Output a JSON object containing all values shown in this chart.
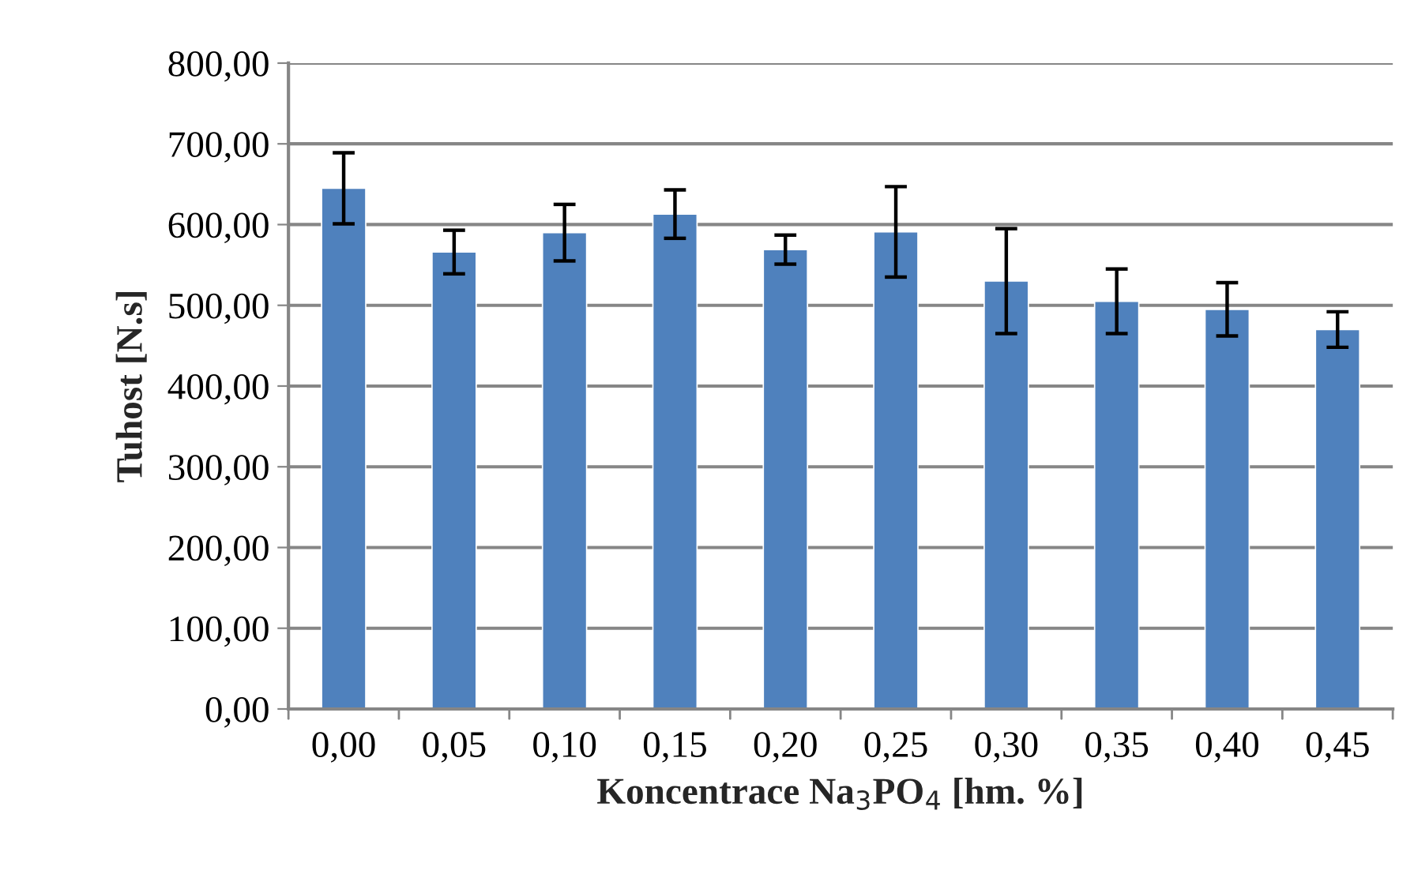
{
  "chart_data": {
    "type": "bar",
    "xlabel": "Koncentrace Na$_{3}$PO$_{4}$ [hm. %]",
    "ylabel": "Tuhost [N.s]",
    "categories": [
      "0,00",
      "0,05",
      "0,10",
      "0,15",
      "0,20",
      "0,25",
      "0,30",
      "0,35",
      "0,40",
      "0,45"
    ],
    "values": [
      645,
      566,
      590,
      613,
      569,
      591,
      530,
      505,
      495,
      470
    ],
    "errors": [
      44,
      27,
      35,
      30,
      18,
      56,
      65,
      40,
      33,
      22
    ],
    "color": "#4f81bd",
    "ylim": [
      0,
      800
    ],
    "yticks": [
      {
        "value": 0,
        "label": "0,00"
      },
      {
        "value": 100,
        "label": "100,00"
      },
      {
        "value": 200,
        "label": "200,00"
      },
      {
        "value": 300,
        "label": "300,00"
      },
      {
        "value": 400,
        "label": "400,00"
      },
      {
        "value": 500,
        "label": "500,00"
      },
      {
        "value": 600,
        "label": "600,00"
      },
      {
        "value": 700,
        "label": "700,00"
      },
      {
        "value": 800,
        "label": "800,00"
      }
    ],
    "grid": "y",
    "legend": false
  }
}
